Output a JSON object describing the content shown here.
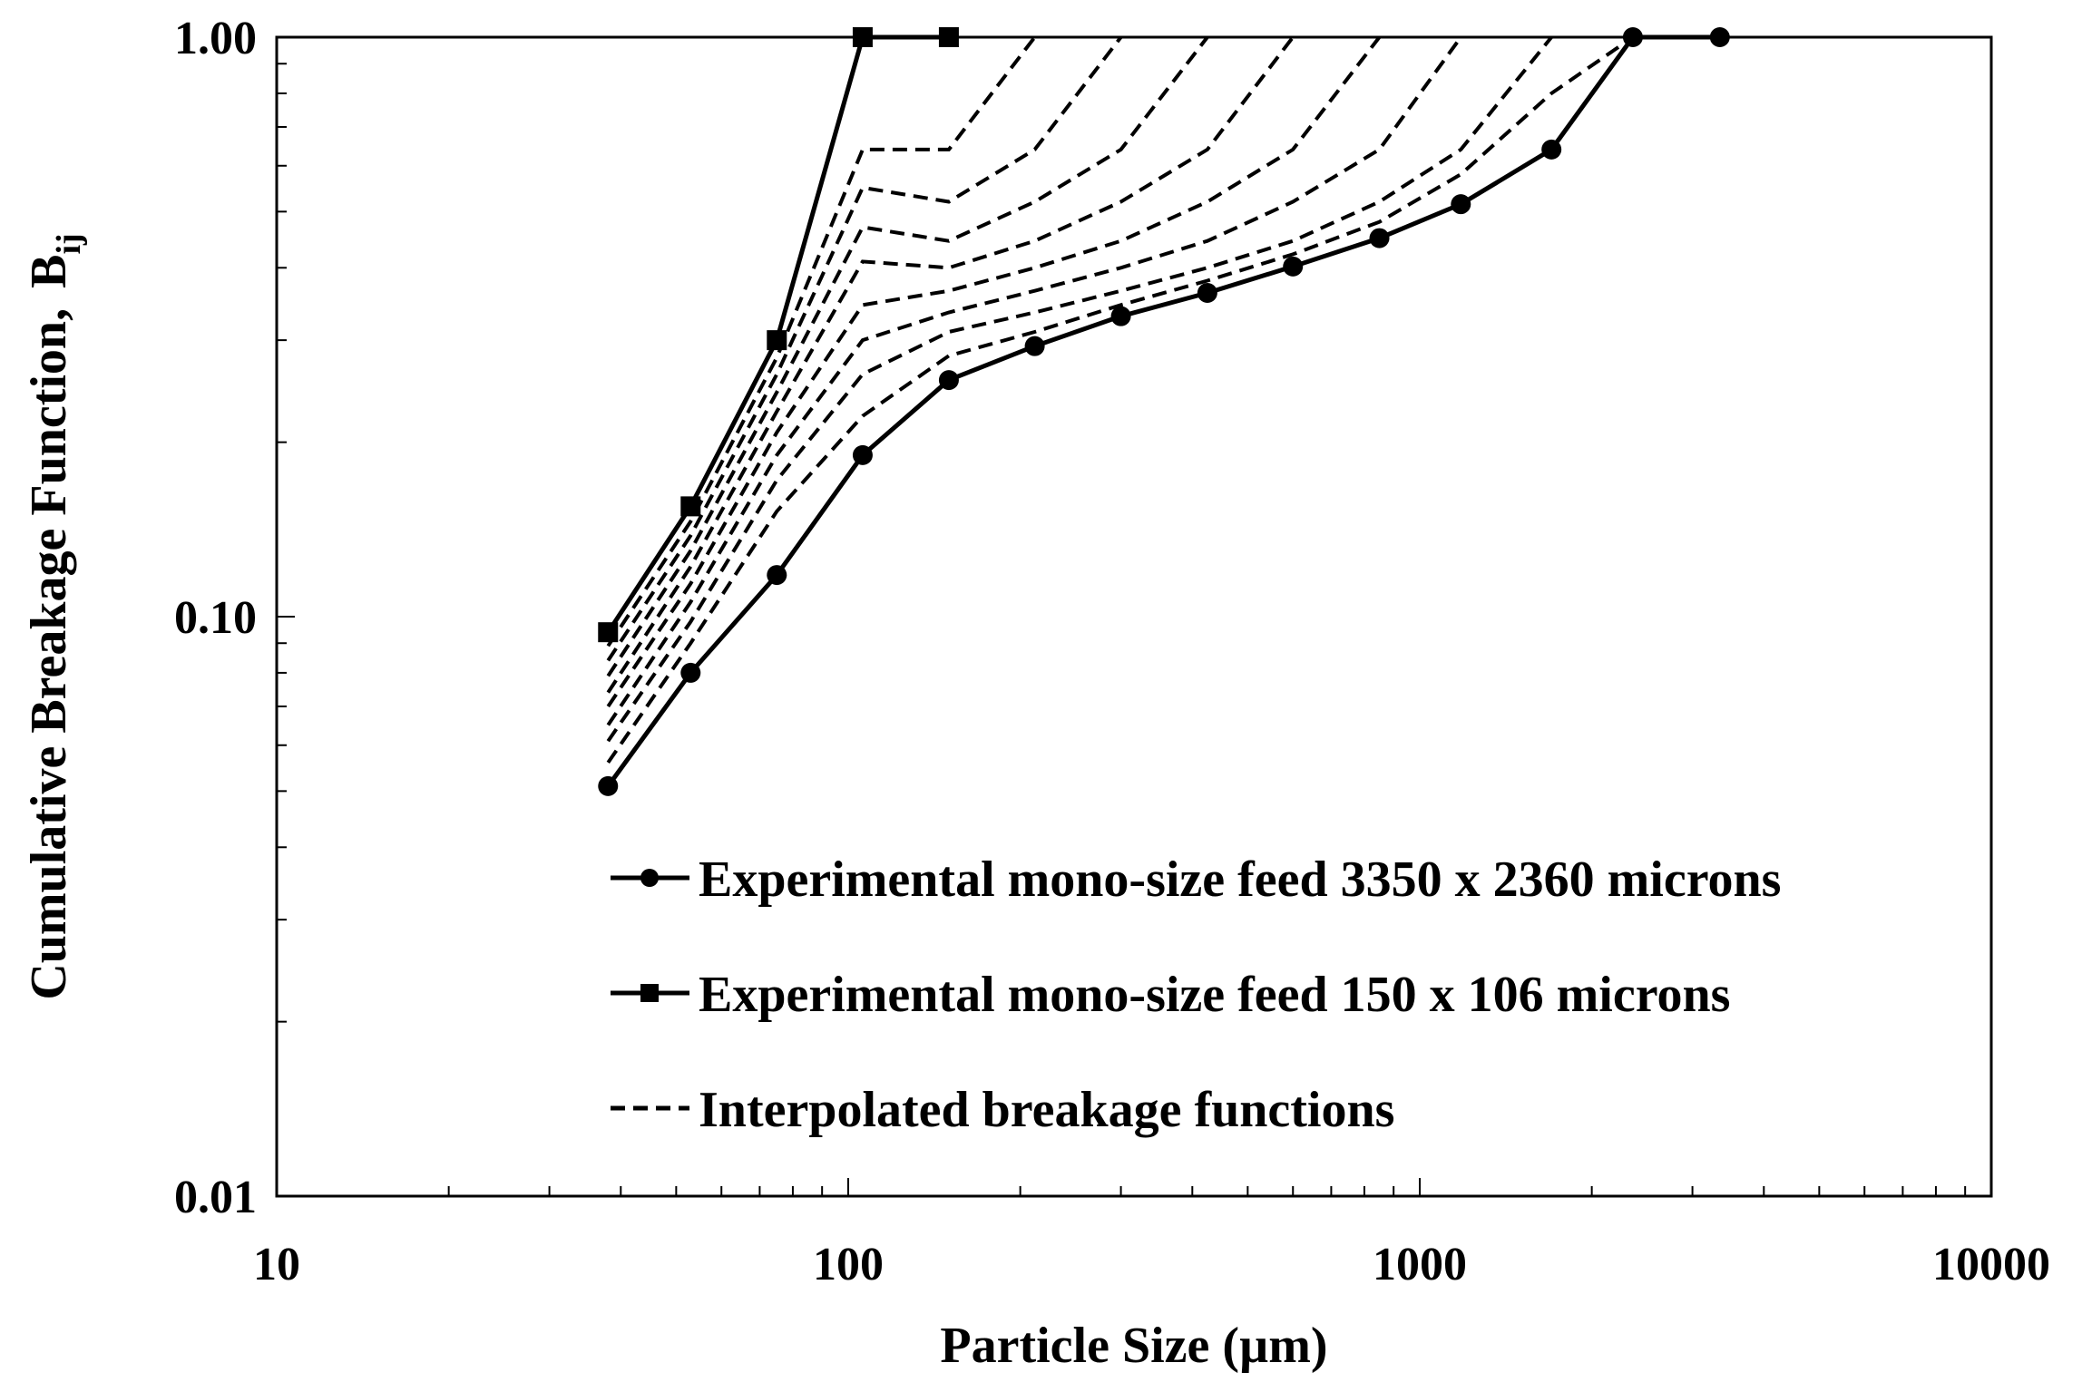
{
  "chart_data": {
    "type": "line",
    "title": "",
    "xlabel": "Particle Size (µm)",
    "ylabel": "Cumulative Breakage Function,",
    "ylabel_symbol": "B",
    "ylabel_subscript": "ij",
    "x_scale": "log",
    "y_scale": "log",
    "xlim": [
      10,
      10000
    ],
    "ylim": [
      0.01,
      1.0
    ],
    "x_ticks": [
      {
        "value": 10,
        "label": "10"
      },
      {
        "value": 100,
        "label": "100"
      },
      {
        "value": 1000,
        "label": "1000"
      },
      {
        "value": 10000,
        "label": "10000"
      }
    ],
    "y_ticks": [
      {
        "value": 0.01,
        "label": "0.01"
      },
      {
        "value": 0.1,
        "label": "0.10"
      },
      {
        "value": 1.0,
        "label": "1.00"
      }
    ],
    "grid": false,
    "legend_position": "bottom-right",
    "series": [
      {
        "name": "Experimental mono-size feed 3350 x 2360 microns",
        "style": "solid",
        "marker": "circle",
        "x": [
          38,
          53,
          75,
          106,
          150,
          212,
          300,
          425,
          600,
          850,
          1180,
          1700,
          2360,
          3350
        ],
        "y": [
          0.051,
          0.08,
          0.118,
          0.19,
          0.256,
          0.293,
          0.33,
          0.362,
          0.402,
          0.45,
          0.515,
          0.64,
          1.0,
          1.0
        ]
      },
      {
        "name": "Experimental mono-size feed 150 x 106 microns",
        "style": "solid",
        "marker": "square",
        "x": [
          38,
          53,
          75,
          106,
          150
        ],
        "y": [
          0.094,
          0.155,
          0.3,
          1.0,
          1.0
        ]
      },
      {
        "name": "Interpolated breakage functions",
        "style": "dashed",
        "marker": "none",
        "curves": [
          {
            "x": [
              38,
              53,
              75,
              106,
              150,
              212
            ],
            "y": [
              0.089,
              0.146,
              0.28,
              0.64,
              0.64,
              1.0
            ]
          },
          {
            "x": [
              38,
              53,
              75,
              106,
              150,
              212,
              300
            ],
            "y": [
              0.084,
              0.138,
              0.262,
              0.55,
              0.52,
              0.64,
              1.0
            ]
          },
          {
            "x": [
              38,
              53,
              75,
              106,
              150,
              212,
              300,
              425
            ],
            "y": [
              0.079,
              0.13,
              0.244,
              0.47,
              0.445,
              0.52,
              0.64,
              1.0
            ]
          },
          {
            "x": [
              38,
              53,
              75,
              106,
              150,
              212,
              300,
              425,
              600
            ],
            "y": [
              0.074,
              0.122,
              0.226,
              0.41,
              0.4,
              0.445,
              0.52,
              0.64,
              1.0
            ]
          },
          {
            "x": [
              38,
              53,
              75,
              106,
              150,
              212,
              300,
              425,
              600,
              850
            ],
            "y": [
              0.07,
              0.114,
              0.208,
              0.345,
              0.365,
              0.4,
              0.445,
              0.52,
              0.64,
              1.0
            ]
          },
          {
            "x": [
              38,
              53,
              75,
              106,
              150,
              212,
              300,
              425,
              600,
              850,
              1180
            ],
            "y": [
              0.065,
              0.106,
              0.19,
              0.3,
              0.335,
              0.365,
              0.4,
              0.445,
              0.52,
              0.64,
              1.0
            ]
          },
          {
            "x": [
              38,
              53,
              75,
              106,
              150,
              212,
              300,
              425,
              600,
              850,
              1180,
              1700
            ],
            "y": [
              0.061,
              0.098,
              0.172,
              0.262,
              0.31,
              0.335,
              0.365,
              0.4,
              0.445,
              0.52,
              0.64,
              1.0
            ]
          },
          {
            "x": [
              38,
              53,
              75,
              106,
              150,
              212,
              300,
              425,
              600,
              850,
              1180,
              1700,
              2360
            ],
            "y": [
              0.056,
              0.09,
              0.152,
              0.222,
              0.282,
              0.31,
              0.345,
              0.38,
              0.422,
              0.48,
              0.58,
              0.8,
              1.0
            ]
          }
        ]
      }
    ]
  }
}
